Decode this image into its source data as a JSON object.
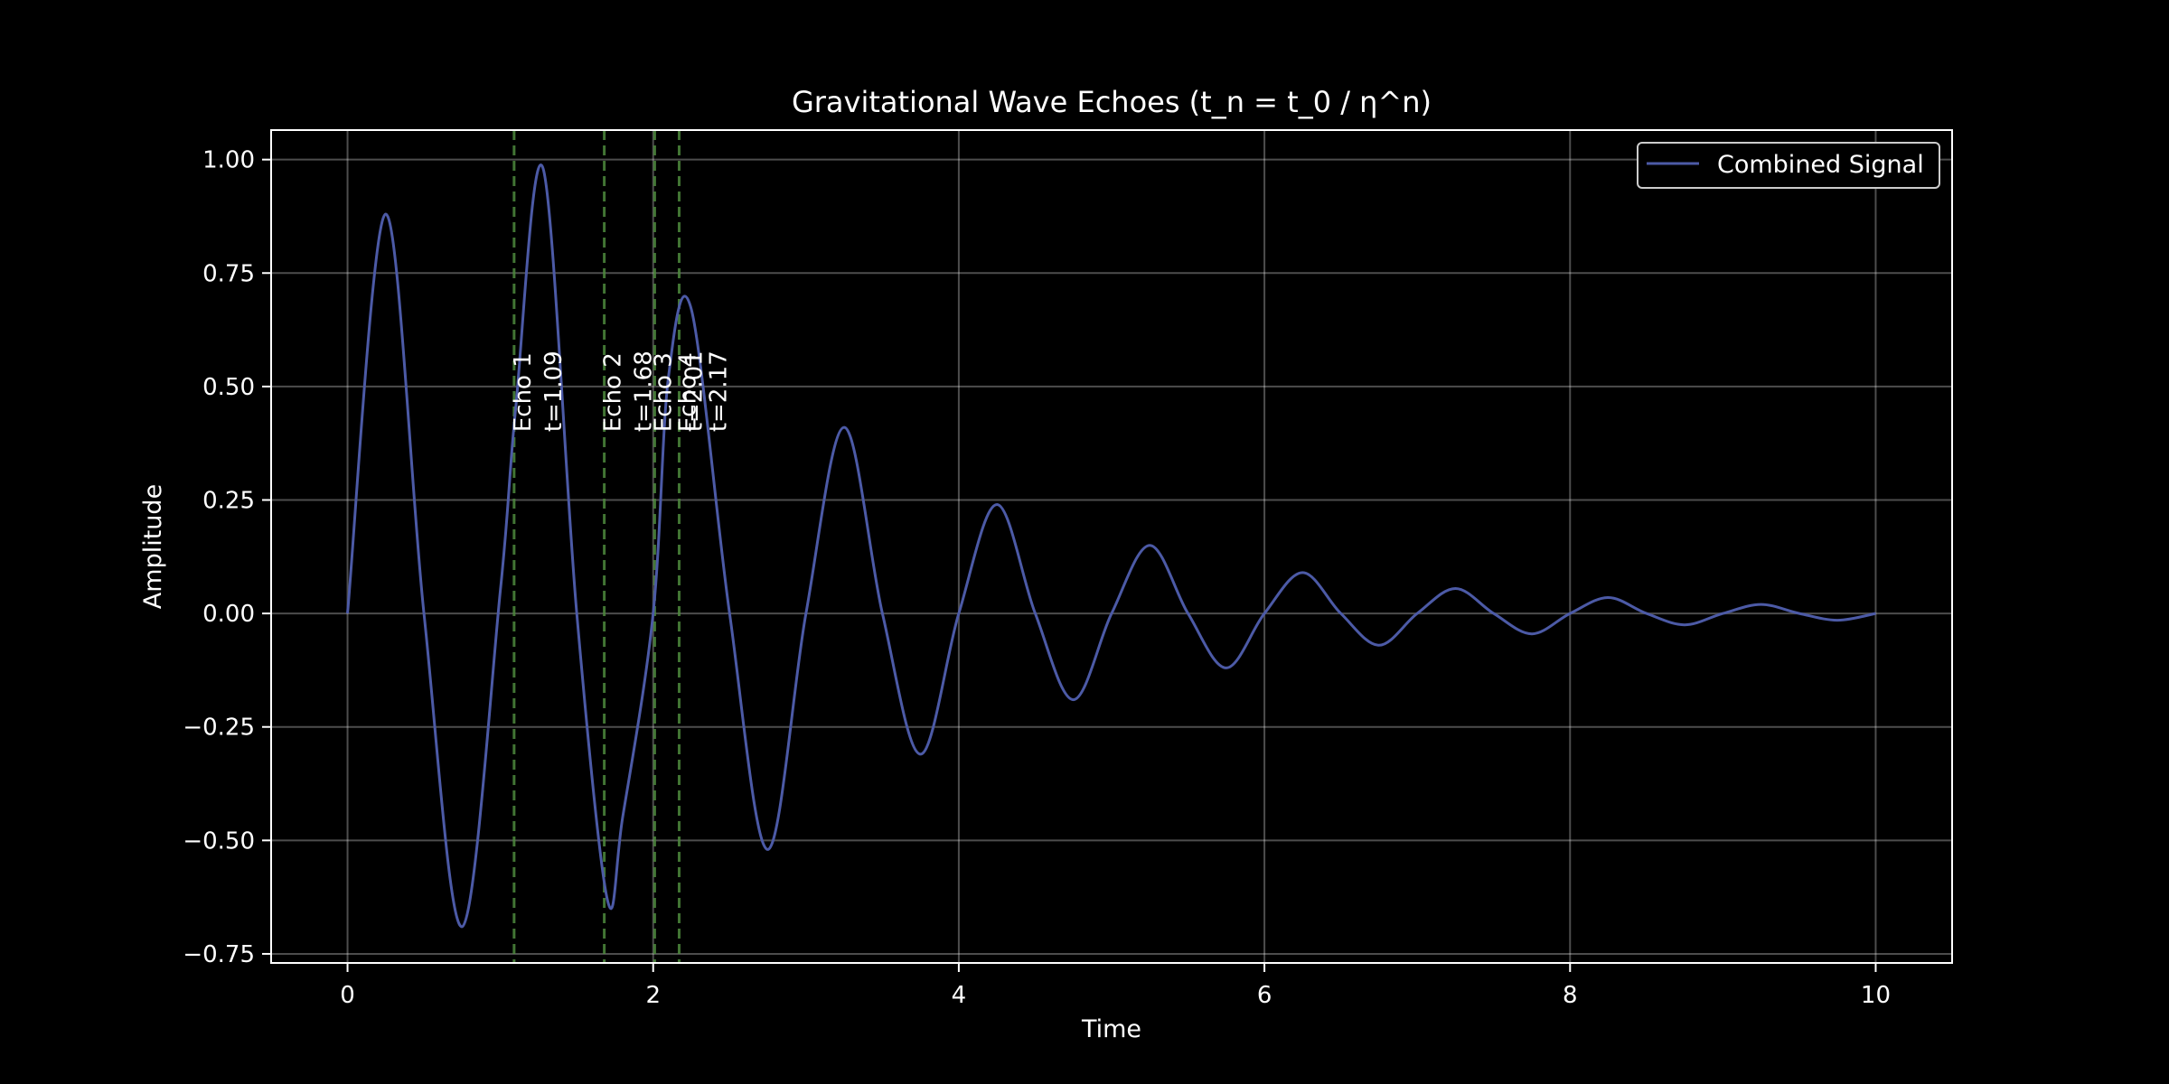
{
  "chart_data": {
    "type": "line",
    "title": "Gravitational Wave Echoes (t_n = t_0 / η^n)",
    "xlabel": "Time",
    "ylabel": "Amplitude",
    "xlim": [
      -0.5,
      10.5
    ],
    "ylim": [
      -0.77,
      1.065
    ],
    "xticks": [
      0,
      2,
      4,
      6,
      8,
      10
    ],
    "xtick_labels": [
      "0",
      "2",
      "4",
      "6",
      "8",
      "10"
    ],
    "yticks": [
      -0.75,
      -0.5,
      -0.25,
      0.0,
      0.25,
      0.5,
      0.75,
      1.0
    ],
    "ytick_labels": [
      "−0.75",
      "−0.50",
      "−0.25",
      "0.00",
      "0.25",
      "0.50",
      "0.75",
      "1.00"
    ],
    "grid": true,
    "legend_position": "top-right",
    "series": [
      {
        "name": "Combined Signal",
        "color": "#4c5aa6",
        "x": [
          0,
          0.25,
          0.5,
          0.75,
          1.0,
          1.1,
          1.28,
          1.5,
          1.7,
          1.8,
          2.0,
          2.1,
          2.25,
          2.5,
          2.75,
          3.0,
          3.25,
          3.5,
          3.75,
          4.0,
          4.25,
          4.5,
          4.75,
          5.0,
          5.25,
          5.5,
          5.75,
          6.0,
          6.25,
          6.5,
          6.75,
          7.0,
          7.25,
          7.5,
          7.75,
          8.0,
          8.25,
          8.5,
          8.75,
          9.0,
          9.25,
          9.5,
          9.75,
          10.0
        ],
        "y": [
          0.0,
          0.88,
          0.0,
          -0.69,
          0.05,
          0.45,
          0.98,
          0.0,
          -0.63,
          -0.45,
          0.0,
          0.52,
          0.67,
          0.0,
          -0.52,
          0.0,
          0.41,
          0.0,
          -0.31,
          0.0,
          0.24,
          0.0,
          -0.19,
          0.0,
          0.15,
          0.0,
          -0.12,
          0.0,
          0.09,
          0.0,
          -0.07,
          0.0,
          0.055,
          0.0,
          -0.045,
          0.0,
          0.035,
          0.0,
          -0.025,
          0.0,
          0.02,
          0.0,
          -0.015,
          0.0
        ]
      }
    ],
    "echoes": [
      {
        "t": 1.09,
        "label": "Echo 1",
        "time_label": "t=1.09"
      },
      {
        "t": 1.68,
        "label": "Echo 2",
        "time_label": "t=1.68"
      },
      {
        "t": 2.01,
        "label": "Echo 3",
        "time_label": "t=2.01"
      },
      {
        "t": 2.17,
        "label": "Echo 4",
        "time_label": "t=2.17"
      }
    ],
    "echo_color": "#4e8a3e"
  }
}
